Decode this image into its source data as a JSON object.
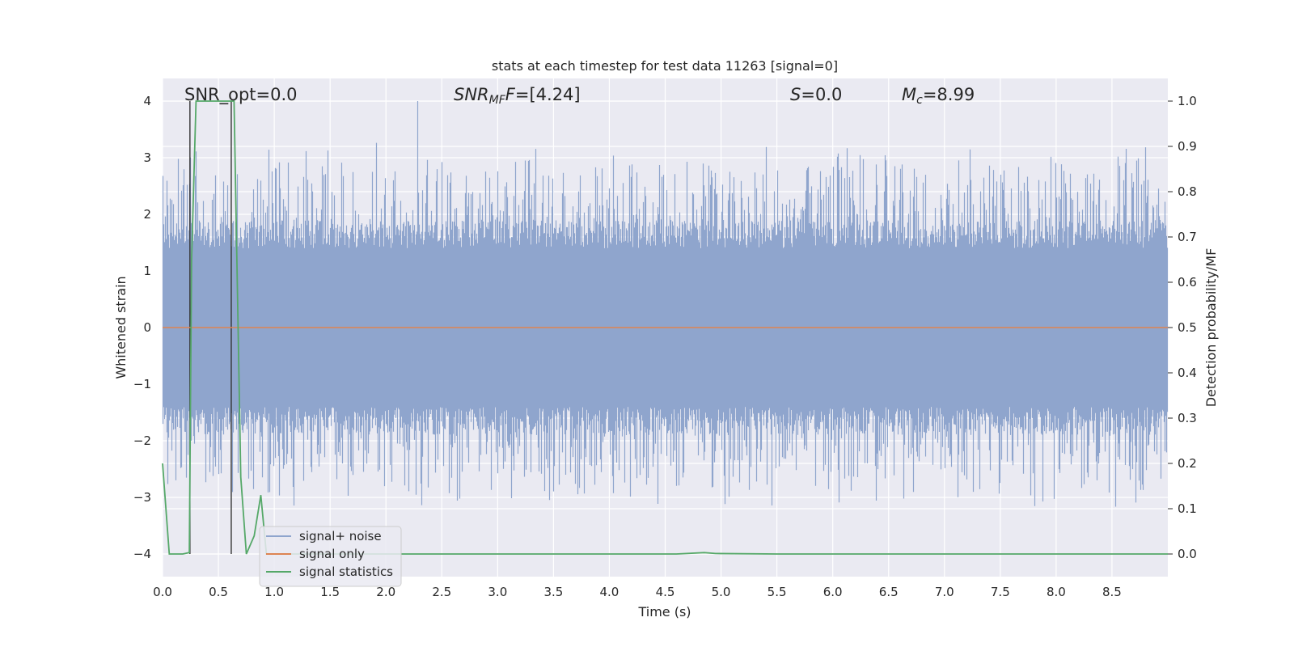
{
  "chart_data": {
    "type": "line",
    "title": "stats at each timestep for test data 11263 [signal=0]",
    "xlabel": "Time (s)",
    "ylabel_left": "Whitened strain",
    "ylabel_right": "Detection probability/MF",
    "xlim": [
      0,
      9
    ],
    "ylim_left": [
      -4.4,
      4.4
    ],
    "ylim_right": [
      -0.05,
      1.05
    ],
    "x_ticks": [
      "0.0",
      "0.5",
      "1.0",
      "1.5",
      "2.0",
      "2.5",
      "3.0",
      "3.5",
      "4.0",
      "4.5",
      "5.0",
      "5.5",
      "6.0",
      "6.5",
      "7.0",
      "7.5",
      "8.0",
      "8.5"
    ],
    "y_ticks_left": [
      "−4",
      "−3",
      "−2",
      "−1",
      "0",
      "1",
      "2",
      "3",
      "4"
    ],
    "y_ticks_right": [
      "0.0",
      "0.1",
      "0.2",
      "0.3",
      "0.4",
      "0.5",
      "0.6",
      "0.7",
      "0.8",
      "0.9",
      "1.0"
    ],
    "grid": true,
    "legend_position": "lower-left",
    "annotations": {
      "snr_opt": "SNR_opt=0.0",
      "snr_mf_sym": "SNR",
      "snr_mf_sub": "MF",
      "snr_mf_val": "=[4.24]",
      "s_sym": "S",
      "s_val": "=0.0",
      "mc_sym": "M",
      "mc_sub": "c",
      "mc_val": "=8.99"
    },
    "markers": [
      0.245,
      0.615
    ],
    "series": [
      {
        "name": "signal+ noise",
        "axis": "left",
        "color": "#8fa5cd",
        "description": "whitened noise, amplitude roughly between -3.6 and 4.0 across 0 to 9 s",
        "envelope_y": [
          -3.6,
          4.0
        ]
      },
      {
        "name": "signal only",
        "axis": "left",
        "color": "#dd8452",
        "x": [
          0,
          9
        ],
        "y": [
          0,
          0
        ]
      },
      {
        "name": "signal statistics",
        "axis": "right",
        "color": "#55a868",
        "x": [
          0,
          0.06,
          0.13,
          0.18,
          0.24,
          0.26,
          0.3,
          0.35,
          0.42,
          0.5,
          0.58,
          0.61,
          0.64,
          0.7,
          0.75,
          0.82,
          0.88,
          0.93,
          1.0,
          1.5,
          2.0,
          3.0,
          4.0,
          4.6,
          4.85,
          4.95,
          5.5,
          6.0,
          7.0,
          8.0,
          9.0
        ],
        "y": [
          0.2,
          0.0,
          0.0,
          0.0,
          0.003,
          0.65,
          1.0,
          1.0,
          1.0,
          1.0,
          1.0,
          1.0,
          1.0,
          0.17,
          0.0,
          0.04,
          0.13,
          0.0,
          0.0,
          0.0,
          0.0,
          0.0,
          0.0,
          0.0,
          0.003,
          0.001,
          0.0,
          0.0,
          0.0,
          0.0,
          0.0
        ]
      }
    ]
  }
}
